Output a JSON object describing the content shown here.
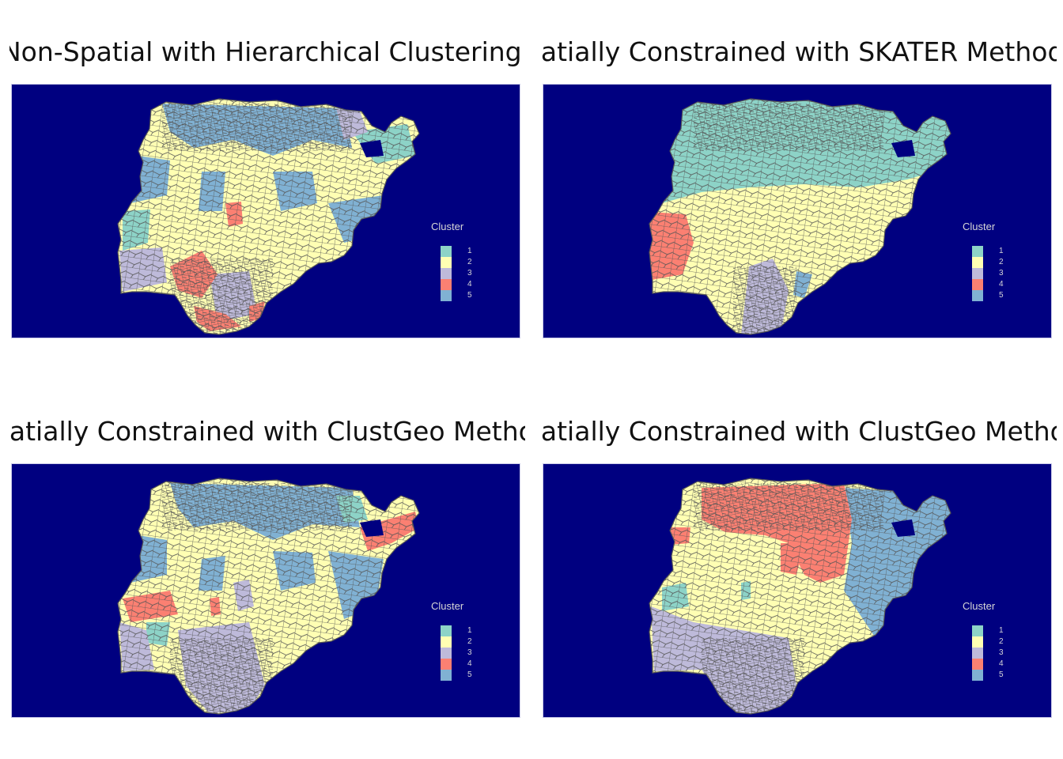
{
  "colors": {
    "ocean": "#000080",
    "boundary": "#555555",
    "cluster_1": "#8DD3C7",
    "cluster_2": "#FFFFB3",
    "cluster_3": "#BEBADA",
    "cluster_4": "#FB8072",
    "cluster_5": "#80B1D3"
  },
  "legend": {
    "title": "Cluster",
    "items": [
      {
        "label": "1",
        "color": "#8DD3C7"
      },
      {
        "label": "2",
        "color": "#FFFFB3"
      },
      {
        "label": "3",
        "color": "#BEBADA"
      },
      {
        "label": "4",
        "color": "#FB8072"
      },
      {
        "label": "5",
        "color": "#80B1D3"
      }
    ]
  },
  "panels": [
    {
      "title": "Non-Spatial with Hierarchical Clustering"
    },
    {
      "title": "Spatially Constrained with SKATER Method"
    },
    {
      "title": "Spatially Constrained with ClustGeo Method"
    },
    {
      "title": "Spatially Constrained with ClustGeo Method"
    }
  ]
}
